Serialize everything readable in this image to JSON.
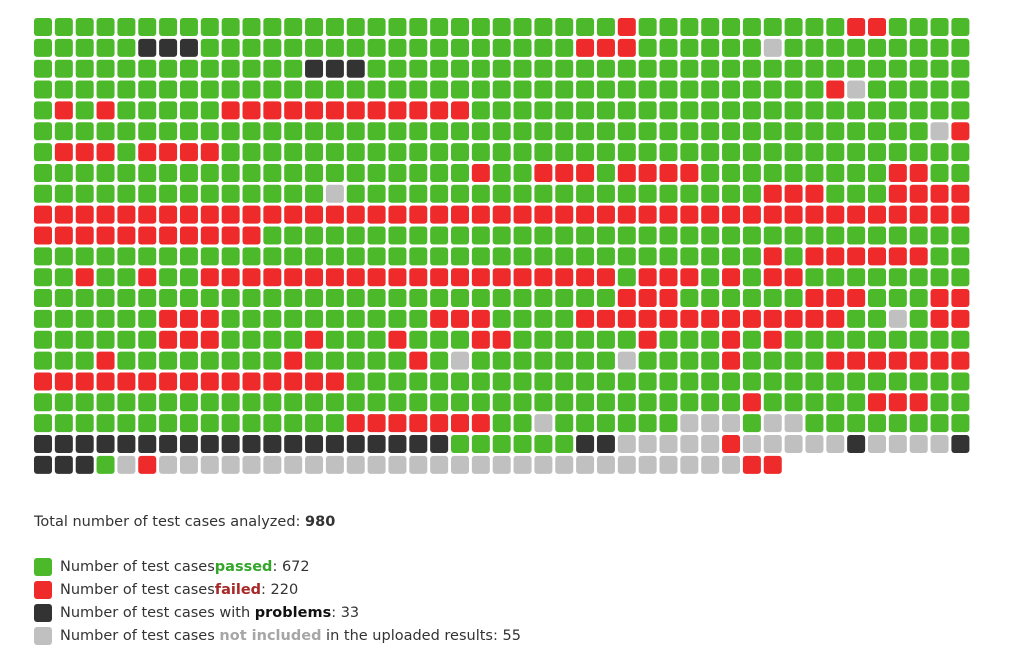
{
  "chart_data": {
    "type": "waffle",
    "total_label": "Total number of test cases analyzed: ",
    "total": 980,
    "colors": {
      "passed": "#4cb92a",
      "failed": "#ee2a2a",
      "problems": "#333333",
      "not_included": "#c0c0c0",
      "passed_text": "#33a62a",
      "failed_text": "#a82727",
      "problems_text": "#111111",
      "not_included_text": "#a6a6a6"
    },
    "legend": [
      {
        "key": "passed",
        "prefix": "Number of test cases ",
        "keyword": "passed",
        "suffix": ": ",
        "value": 672
      },
      {
        "key": "failed",
        "prefix": "Number of test cases ",
        "keyword": "failed",
        "suffix": ": ",
        "value": 220
      },
      {
        "key": "problems",
        "prefix": "Number of test cases with ",
        "keyword": "problems",
        "suffix": ": ",
        "value": 33
      },
      {
        "key": "not_included",
        "prefix": "Number of test cases ",
        "keyword": "not included",
        "suffix": " in the uploaded results: ",
        "value": 55
      }
    ],
    "columns": 45,
    "rows": [
      "GGGGGGGGGGGGGGGGGGGGGGGGGGGGRGGGGGGGGGGRRGGGGG",
      "GGGGGPPPGGGGGGGGGGGGGGGGGGRRRGGGGGGNGGGGGGGGG",
      "GGGGGGGGGGGGGPPPGGGGGGGGGGGGGGGGGGGGGGGGGGGGG",
      "GGGGGGGGGGGGGGGGGGGGGGGGGGGGGGGGGGGGGGRNGGGGG",
      "GRGRGGGGGRRRRRRRRRRRRGGGGGGGGGGGGGGGGGGGGGGGG",
      "GGGGGGGGGGGGGGGGGGGGGGGGGGGGGGGGGGGGGGGGGGGNR",
      "GRRRGRRRRGGGGGGGGGGGGGGGGGGGGGGGGGGGGGGGGGGGG",
      "GGGGGGGGGGGGGGGGGGGGGRGGRRRGRRRRGGGGGGGGGRRGG",
      "GGGGGGGGGGGGGGNGGGGGGGGGGGGGGGGGGGGRRRGGGRRRR",
      "RRRRRRRRRRRRRRRRRRRRRRRRRRRRRRRRRRRRRRRRRRRRR",
      "RRRRRRRRRRRGGGGGGGGGGGGGGGGGGGGGGGGGGGGGGGGGG",
      "GGGGGGGGGGGGGGGGGGGGGGGGGGGGGGGGGGGRGRRRRRRGG",
      "GGRGGRGGRRRRRRRRRRRRRRRRRRRRGRRRGRGRRGGGGGGGG",
      "GGGGGGGGGGGGGGGGGGGGGGGGGGGGRRRGGGGGGRRRGGGRR",
      "GGGGGGRRRGGGGGGGGGGRRRGGGGRRRRRRRRRRRRRGGNGRR",
      "GGGGGGRRRGGGGRGGGRGGGRRGGGGGGRGGGRGRGGGGGGGGG",
      "GGGRGGGGGGGGRGGGGGRGNGGGGGGGNGGGGRGGGGRRRRRRRR",
      "RRRRRRRRRRRRRRRGGGGGGGGGGGGGGGGGGGGGGGGGGGGGG",
      "GGGGGGGGGGGGGGGGGGGGGGGGGGGGGGGGGGRGGGGGRRRGG",
      "GGGGGGGGGGGGGGGRRRRRRRGGNGGGGGGNNNGNNGGGGGGGG",
      "PPPPPPPPPPPPPPPPPPPPGGGGGGPPNNNNNRNNNNNPNNNNPP",
      "PPPGNRNNNNNNNNNNNNNNNNNNNNNNNNNNNNRR"
    ]
  }
}
